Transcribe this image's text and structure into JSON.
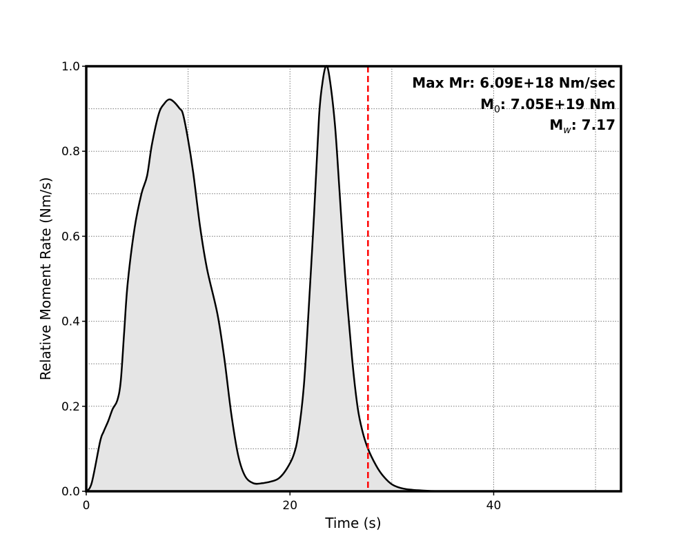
{
  "chart_data": {
    "type": "area",
    "title": "",
    "xlabel": "Time (s)",
    "ylabel": "Relative Moment Rate (Nm/s)",
    "xlim": [
      0,
      52.5
    ],
    "ylim": [
      0,
      1.0
    ],
    "xticks": [
      0,
      20,
      40
    ],
    "xtick_labels": [
      "0",
      "20",
      "40"
    ],
    "yticks": [
      0.0,
      0.2,
      0.4,
      0.6,
      0.8,
      1.0
    ],
    "ytick_labels": [
      "0.0",
      "0.2",
      "0.4",
      "0.6",
      "0.8",
      "1.0"
    ],
    "grid": true,
    "grid_x_step": 10,
    "grid_y_step": 0.1,
    "fill_color": "#e5e5e5",
    "line_color": "#000000",
    "marker_line": {
      "x": 27.66,
      "color": "#ff0000",
      "style": "dashed"
    },
    "annotations": {
      "max_mr": {
        "label": "Max Mr: ",
        "value": "6.09E+18 Nm/sec"
      },
      "m0": {
        "label": "M",
        "sub": "0",
        "value": ": 7.05E+19 Nm"
      },
      "mw": {
        "label": "M",
        "sub": "w",
        "value": ": 7.17"
      },
      "placement": "top-right"
    },
    "series": [
      {
        "name": "moment rate",
        "x": [
          0,
          0.54,
          1.36,
          1.7,
          2.17,
          2.58,
          3.05,
          3.39,
          3.73,
          4.07,
          4.75,
          5.42,
          5.97,
          6.44,
          7.12,
          7.66,
          8.14,
          8.61,
          9.15,
          9.49,
          9.97,
          10.5,
          11.19,
          11.86,
          12.88,
          13.56,
          14.24,
          14.92,
          15.59,
          16.4,
          17.29,
          18.3,
          18.98,
          19.66,
          20.34,
          20.81,
          21.36,
          21.83,
          22.37,
          22.85,
          23.19,
          23.53,
          23.86,
          24.41,
          24.88,
          25.42,
          26.1,
          26.64,
          27.12,
          27.66,
          28.47,
          29.15,
          30.03,
          31.19,
          32.88,
          34.9,
          40,
          52.5
        ],
        "y": [
          0,
          0.02,
          0.117,
          0.14,
          0.166,
          0.193,
          0.214,
          0.26,
          0.377,
          0.49,
          0.62,
          0.7,
          0.742,
          0.815,
          0.888,
          0.912,
          0.922,
          0.916,
          0.901,
          0.888,
          0.831,
          0.75,
          0.62,
          0.523,
          0.417,
          0.312,
          0.182,
          0.084,
          0.036,
          0.019,
          0.019,
          0.024,
          0.032,
          0.052,
          0.084,
          0.133,
          0.247,
          0.425,
          0.653,
          0.88,
          0.961,
          1.0,
          0.977,
          0.864,
          0.701,
          0.506,
          0.312,
          0.198,
          0.141,
          0.1,
          0.06,
          0.036,
          0.016,
          0.006,
          0.002,
          0,
          0,
          0
        ]
      }
    ]
  }
}
